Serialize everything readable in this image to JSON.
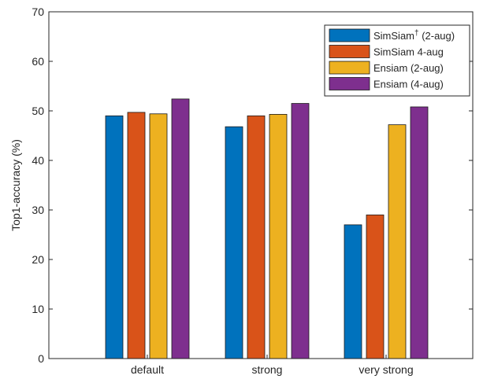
{
  "chart_data": {
    "type": "bar",
    "title": "",
    "xlabel": "",
    "ylabel": "Top1-accuracy (%)",
    "ylim": [
      0,
      70
    ],
    "yticks": [
      0,
      10,
      20,
      30,
      40,
      50,
      60,
      70
    ],
    "grid": false,
    "legend_position": "top-right",
    "categories": [
      "default",
      "strong",
      "very strong"
    ],
    "series": [
      {
        "name": "SimSiam",
        "name_sup": "†",
        "name_suffix": " (2-aug)",
        "color": "#0072BD",
        "values": [
          49.0,
          46.8,
          27.0
        ]
      },
      {
        "name": "SimSiam 4-aug",
        "color": "#D95319",
        "values": [
          49.7,
          49.0,
          29.0
        ]
      },
      {
        "name": "Ensiam (2-aug)",
        "color": "#EDB120",
        "values": [
          49.4,
          49.3,
          47.2
        ]
      },
      {
        "name": "Ensiam (4-aug)",
        "color": "#7E2F8E",
        "values": [
          52.4,
          51.5,
          50.8
        ]
      }
    ]
  }
}
